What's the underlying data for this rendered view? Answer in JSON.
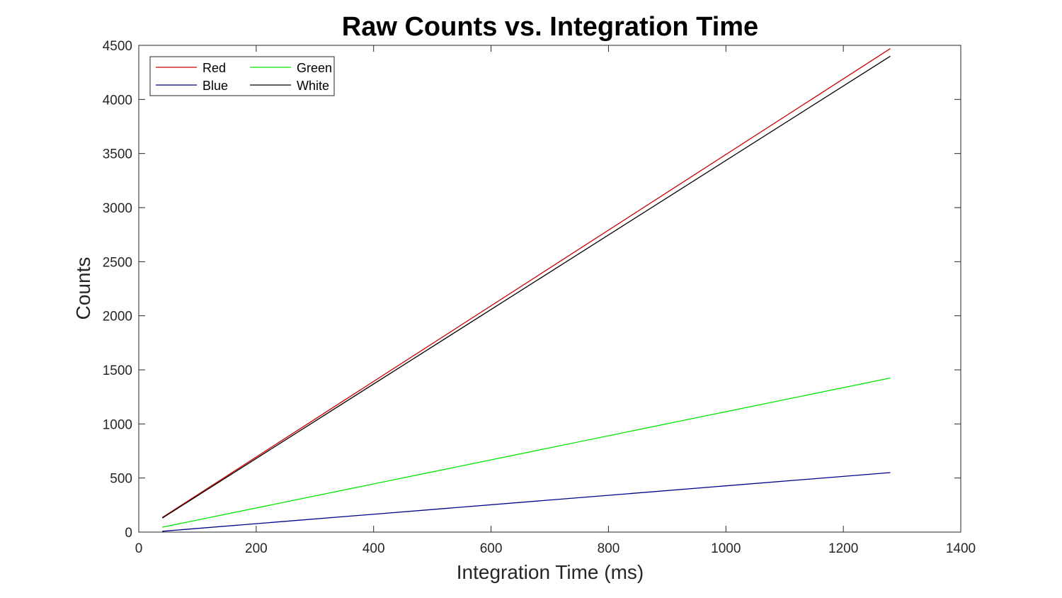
{
  "chart_data": {
    "type": "line",
    "title": "Raw Counts vs. Integration Time",
    "xlabel": "Integration Time (ms)",
    "ylabel": "Counts",
    "xlim": [
      0,
      1400
    ],
    "ylim": [
      0,
      4500
    ],
    "xticks": [
      0,
      200,
      400,
      600,
      800,
      1000,
      1200,
      1400
    ],
    "yticks": [
      0,
      500,
      1000,
      1500,
      2000,
      2500,
      3000,
      3500,
      4000,
      4500
    ],
    "grid": false,
    "legend_position": "top-left",
    "x": [
      40,
      1280
    ],
    "series": [
      {
        "name": "Red",
        "color": "#cc0000",
        "values": [
          135,
          4470
        ]
      },
      {
        "name": "Green",
        "color": "#00e600",
        "values": [
          45,
          1425
        ]
      },
      {
        "name": "Blue",
        "color": "#00008b",
        "values": [
          8,
          550
        ]
      },
      {
        "name": "White",
        "color": "#000000",
        "values": [
          130,
          4400
        ]
      }
    ]
  }
}
